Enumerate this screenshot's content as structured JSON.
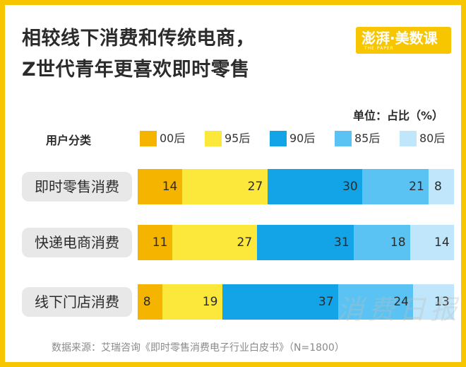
{
  "title_lines": [
    "相较线下消费和传统电商，",
    "Z世代青年更喜欢即时零售"
  ],
  "logo": {
    "text": "澎湃·美数课",
    "sub": "THE PAPER"
  },
  "unit_label": "单位：占比（%）",
  "legend_title": "用户分类",
  "source": "数据来源：艾瑞咨询《即时零售消费电子行业白皮书》（N=1800）",
  "watermark": "消费日报",
  "colors": {
    "border": "#f7c600",
    "00后": "#f5b400",
    "95后": "#fce83a",
    "90后": "#13a4e8",
    "85后": "#5bc3f3",
    "80后": "#bfe6fa"
  },
  "chart_data": {
    "type": "bar",
    "orientation": "horizontal",
    "stacked": true,
    "categories": [
      "即时零售消费",
      "快递电商消费",
      "线下门店消费"
    ],
    "series": [
      {
        "name": "00后",
        "color": "#f5b400",
        "values": [
          14,
          11,
          8
        ]
      },
      {
        "name": "95后",
        "color": "#fce83a",
        "values": [
          27,
          27,
          19
        ]
      },
      {
        "name": "90后",
        "color": "#13a4e8",
        "values": [
          30,
          31,
          37
        ]
      },
      {
        "name": "85后",
        "color": "#5bc3f3",
        "values": [
          21,
          18,
          24
        ]
      },
      {
        "name": "80后",
        "color": "#bfe6fa",
        "values": [
          8,
          14,
          13
        ]
      }
    ],
    "legend_position": "top",
    "grid": false
  }
}
